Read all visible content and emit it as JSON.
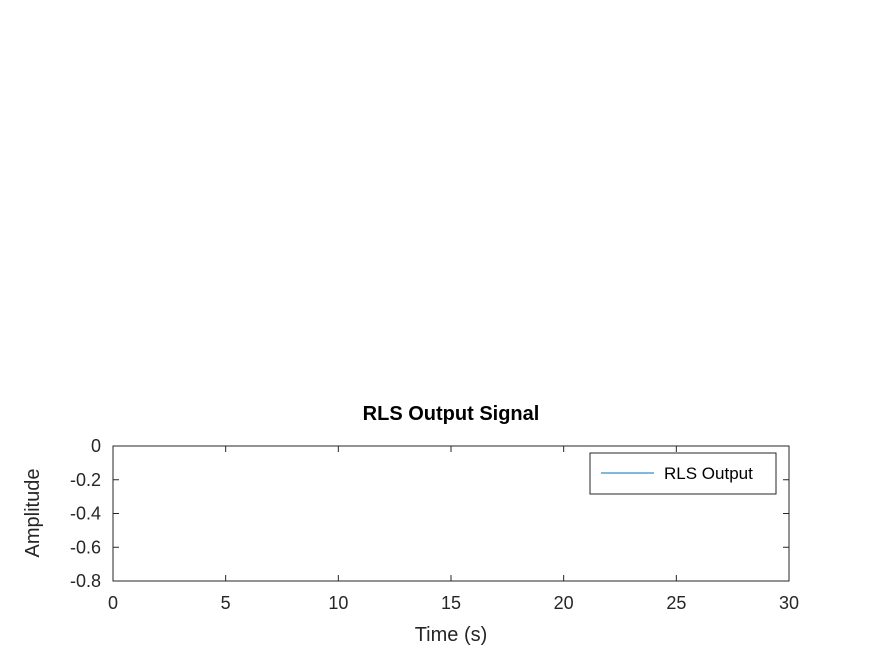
{
  "chart_data": {
    "type": "line",
    "title": "RLS Output Signal",
    "xlabel": "Time (s)",
    "ylabel": "Amplitude",
    "xlim": [
      0,
      30
    ],
    "ylim": [
      -0.8,
      0
    ],
    "x_ticks": [
      0,
      5,
      10,
      15,
      20,
      25,
      30
    ],
    "x_tick_labels": [
      "0",
      "5",
      "10",
      "15",
      "20",
      "25",
      "30"
    ],
    "y_ticks": [
      0,
      -0.2,
      -0.4,
      -0.6,
      -0.8
    ],
    "y_tick_labels": [
      "0",
      "-0.2",
      "-0.4",
      "-0.6",
      "-0.8"
    ],
    "grid": false,
    "legend_position": "top-right",
    "series": [
      {
        "name": "RLS Output",
        "color": "#0072BD",
        "x": [],
        "y": []
      }
    ]
  }
}
